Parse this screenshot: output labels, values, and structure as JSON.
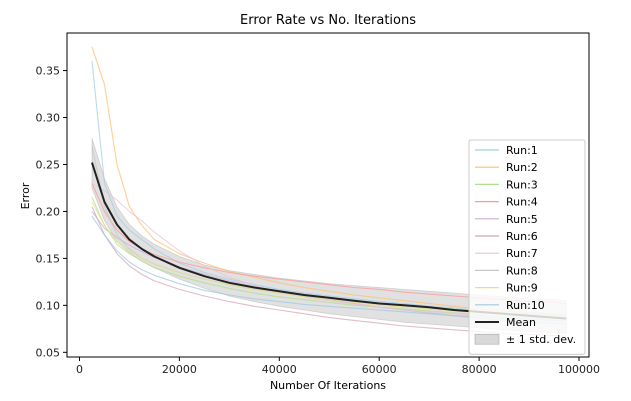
{
  "chart_data": {
    "type": "line",
    "title": "Error Rate vs No. Iterations",
    "xlabel": "Number Of Iterations",
    "ylabel": "Error",
    "xlim": [
      -2500,
      102000
    ],
    "ylim": [
      0.045,
      0.39
    ],
    "xticks": [
      0,
      20000,
      40000,
      60000,
      80000,
      100000
    ],
    "xtick_labels": [
      "0",
      "20000",
      "40000",
      "60000",
      "80000",
      "100000"
    ],
    "yticks": [
      0.05,
      0.1,
      0.15,
      0.2,
      0.25,
      0.3,
      0.35
    ],
    "ytick_labels": [
      "0.05",
      "0.10",
      "0.15",
      "0.20",
      "0.25",
      "0.30",
      "0.35"
    ],
    "grid": false,
    "legend_position": "right",
    "x": [
      2500,
      5000,
      7500,
      10000,
      12500,
      15000,
      20000,
      25000,
      30000,
      35000,
      40000,
      45000,
      50000,
      55000,
      60000,
      65000,
      70000,
      75000,
      80000,
      85000,
      90000,
      95000,
      97500
    ],
    "series": [
      {
        "name": "Run:1",
        "color": "#a6cee3",
        "values": [
          0.36,
          0.23,
          0.195,
          0.18,
          0.17,
          0.16,
          0.145,
          0.135,
          0.128,
          0.122,
          0.117,
          0.113,
          0.11,
          0.107,
          0.104,
          0.102,
          0.099,
          0.097,
          0.094,
          0.092,
          0.09,
          0.089,
          0.088
        ]
      },
      {
        "name": "Run:2",
        "color": "#fdbf6f",
        "values": [
          0.375,
          0.335,
          0.25,
          0.205,
          0.185,
          0.17,
          0.155,
          0.145,
          0.136,
          0.13,
          0.124,
          0.119,
          0.115,
          0.111,
          0.108,
          0.105,
          0.102,
          0.099,
          0.096,
          0.094,
          0.092,
          0.091,
          0.09
        ]
      },
      {
        "name": "Run:3",
        "color": "#b2df8a",
        "values": [
          0.215,
          0.185,
          0.165,
          0.155,
          0.147,
          0.14,
          0.131,
          0.124,
          0.118,
          0.113,
          0.109,
          0.106,
          0.103,
          0.1,
          0.098,
          0.096,
          0.094,
          0.092,
          0.09,
          0.088,
          0.087,
          0.086,
          0.085
        ]
      },
      {
        "name": "Run:4",
        "color": "#fb9a99",
        "values": [
          0.23,
          0.2,
          0.18,
          0.168,
          0.16,
          0.154,
          0.146,
          0.14,
          0.135,
          0.131,
          0.128,
          0.125,
          0.122,
          0.119,
          0.117,
          0.114,
          0.112,
          0.11,
          0.108,
          0.106,
          0.104,
          0.103,
          0.102
        ]
      },
      {
        "name": "Run:5",
        "color": "#cab2d6",
        "values": [
          0.2,
          0.182,
          0.172,
          0.164,
          0.157,
          0.151,
          0.141,
          0.133,
          0.126,
          0.12,
          0.115,
          0.11,
          0.106,
          0.102,
          0.098,
          0.095,
          0.092,
          0.089,
          0.086,
          0.084,
          0.082,
          0.081,
          0.08
        ]
      },
      {
        "name": "Run:6",
        "color": "#d4a5b5",
        "values": [
          0.205,
          0.175,
          0.155,
          0.142,
          0.133,
          0.126,
          0.117,
          0.11,
          0.104,
          0.099,
          0.095,
          0.091,
          0.087,
          0.084,
          0.081,
          0.078,
          0.076,
          0.074,
          0.072,
          0.07,
          0.069,
          0.068,
          0.067
        ]
      },
      {
        "name": "Run:7",
        "color": "#e8c6d6",
        "values": [
          0.23,
          0.222,
          0.212,
          0.2,
          0.19,
          0.178,
          0.158,
          0.142,
          0.13,
          0.121,
          0.114,
          0.109,
          0.105,
          0.101,
          0.098,
          0.095,
          0.093,
          0.091,
          0.089,
          0.087,
          0.086,
          0.085,
          0.084
        ]
      },
      {
        "name": "Run:8",
        "color": "#c8c8c8",
        "values": [
          0.27,
          0.205,
          0.175,
          0.16,
          0.15,
          0.144,
          0.135,
          0.128,
          0.122,
          0.117,
          0.113,
          0.11,
          0.107,
          0.104,
          0.102,
          0.099,
          0.097,
          0.095,
          0.093,
          0.092,
          0.091,
          0.09,
          0.089
        ]
      },
      {
        "name": "Run:9",
        "color": "#e5e08a",
        "values": [
          0.21,
          0.185,
          0.168,
          0.158,
          0.15,
          0.144,
          0.135,
          0.128,
          0.122,
          0.117,
          0.113,
          0.109,
          0.106,
          0.103,
          0.1,
          0.098,
          0.096,
          0.094,
          0.092,
          0.09,
          0.089,
          0.088,
          0.087
        ]
      },
      {
        "name": "Run:10",
        "color": "#9ecae1",
        "values": [
          0.195,
          0.175,
          0.158,
          0.146,
          0.138,
          0.132,
          0.123,
          0.116,
          0.111,
          0.107,
          0.104,
          0.101,
          0.099,
          0.097,
          0.095,
          0.093,
          0.091,
          0.089,
          0.088,
          0.086,
          0.085,
          0.084,
          0.083
        ]
      },
      {
        "name": "Mean",
        "color": "#222222",
        "values": [
          0.252,
          0.21,
          0.186,
          0.17,
          0.16,
          0.152,
          0.14,
          0.131,
          0.124,
          0.119,
          0.115,
          0.111,
          0.108,
          0.105,
          0.102,
          0.1,
          0.098,
          0.095,
          0.093,
          0.091,
          0.089,
          0.087,
          0.086
        ]
      }
    ],
    "band": {
      "name": "± 1 std. dev.",
      "color": "#c8c8c8",
      "lower": [
        0.225,
        0.19,
        0.168,
        0.156,
        0.147,
        0.14,
        0.128,
        0.118,
        0.11,
        0.104,
        0.099,
        0.095,
        0.091,
        0.088,
        0.085,
        0.082,
        0.08,
        0.078,
        0.076,
        0.074,
        0.072,
        0.071,
        0.07
      ],
      "upper": [
        0.278,
        0.235,
        0.205,
        0.186,
        0.174,
        0.165,
        0.152,
        0.143,
        0.137,
        0.133,
        0.129,
        0.126,
        0.123,
        0.121,
        0.119,
        0.117,
        0.115,
        0.113,
        0.111,
        0.109,
        0.107,
        0.106,
        0.105
      ]
    }
  }
}
